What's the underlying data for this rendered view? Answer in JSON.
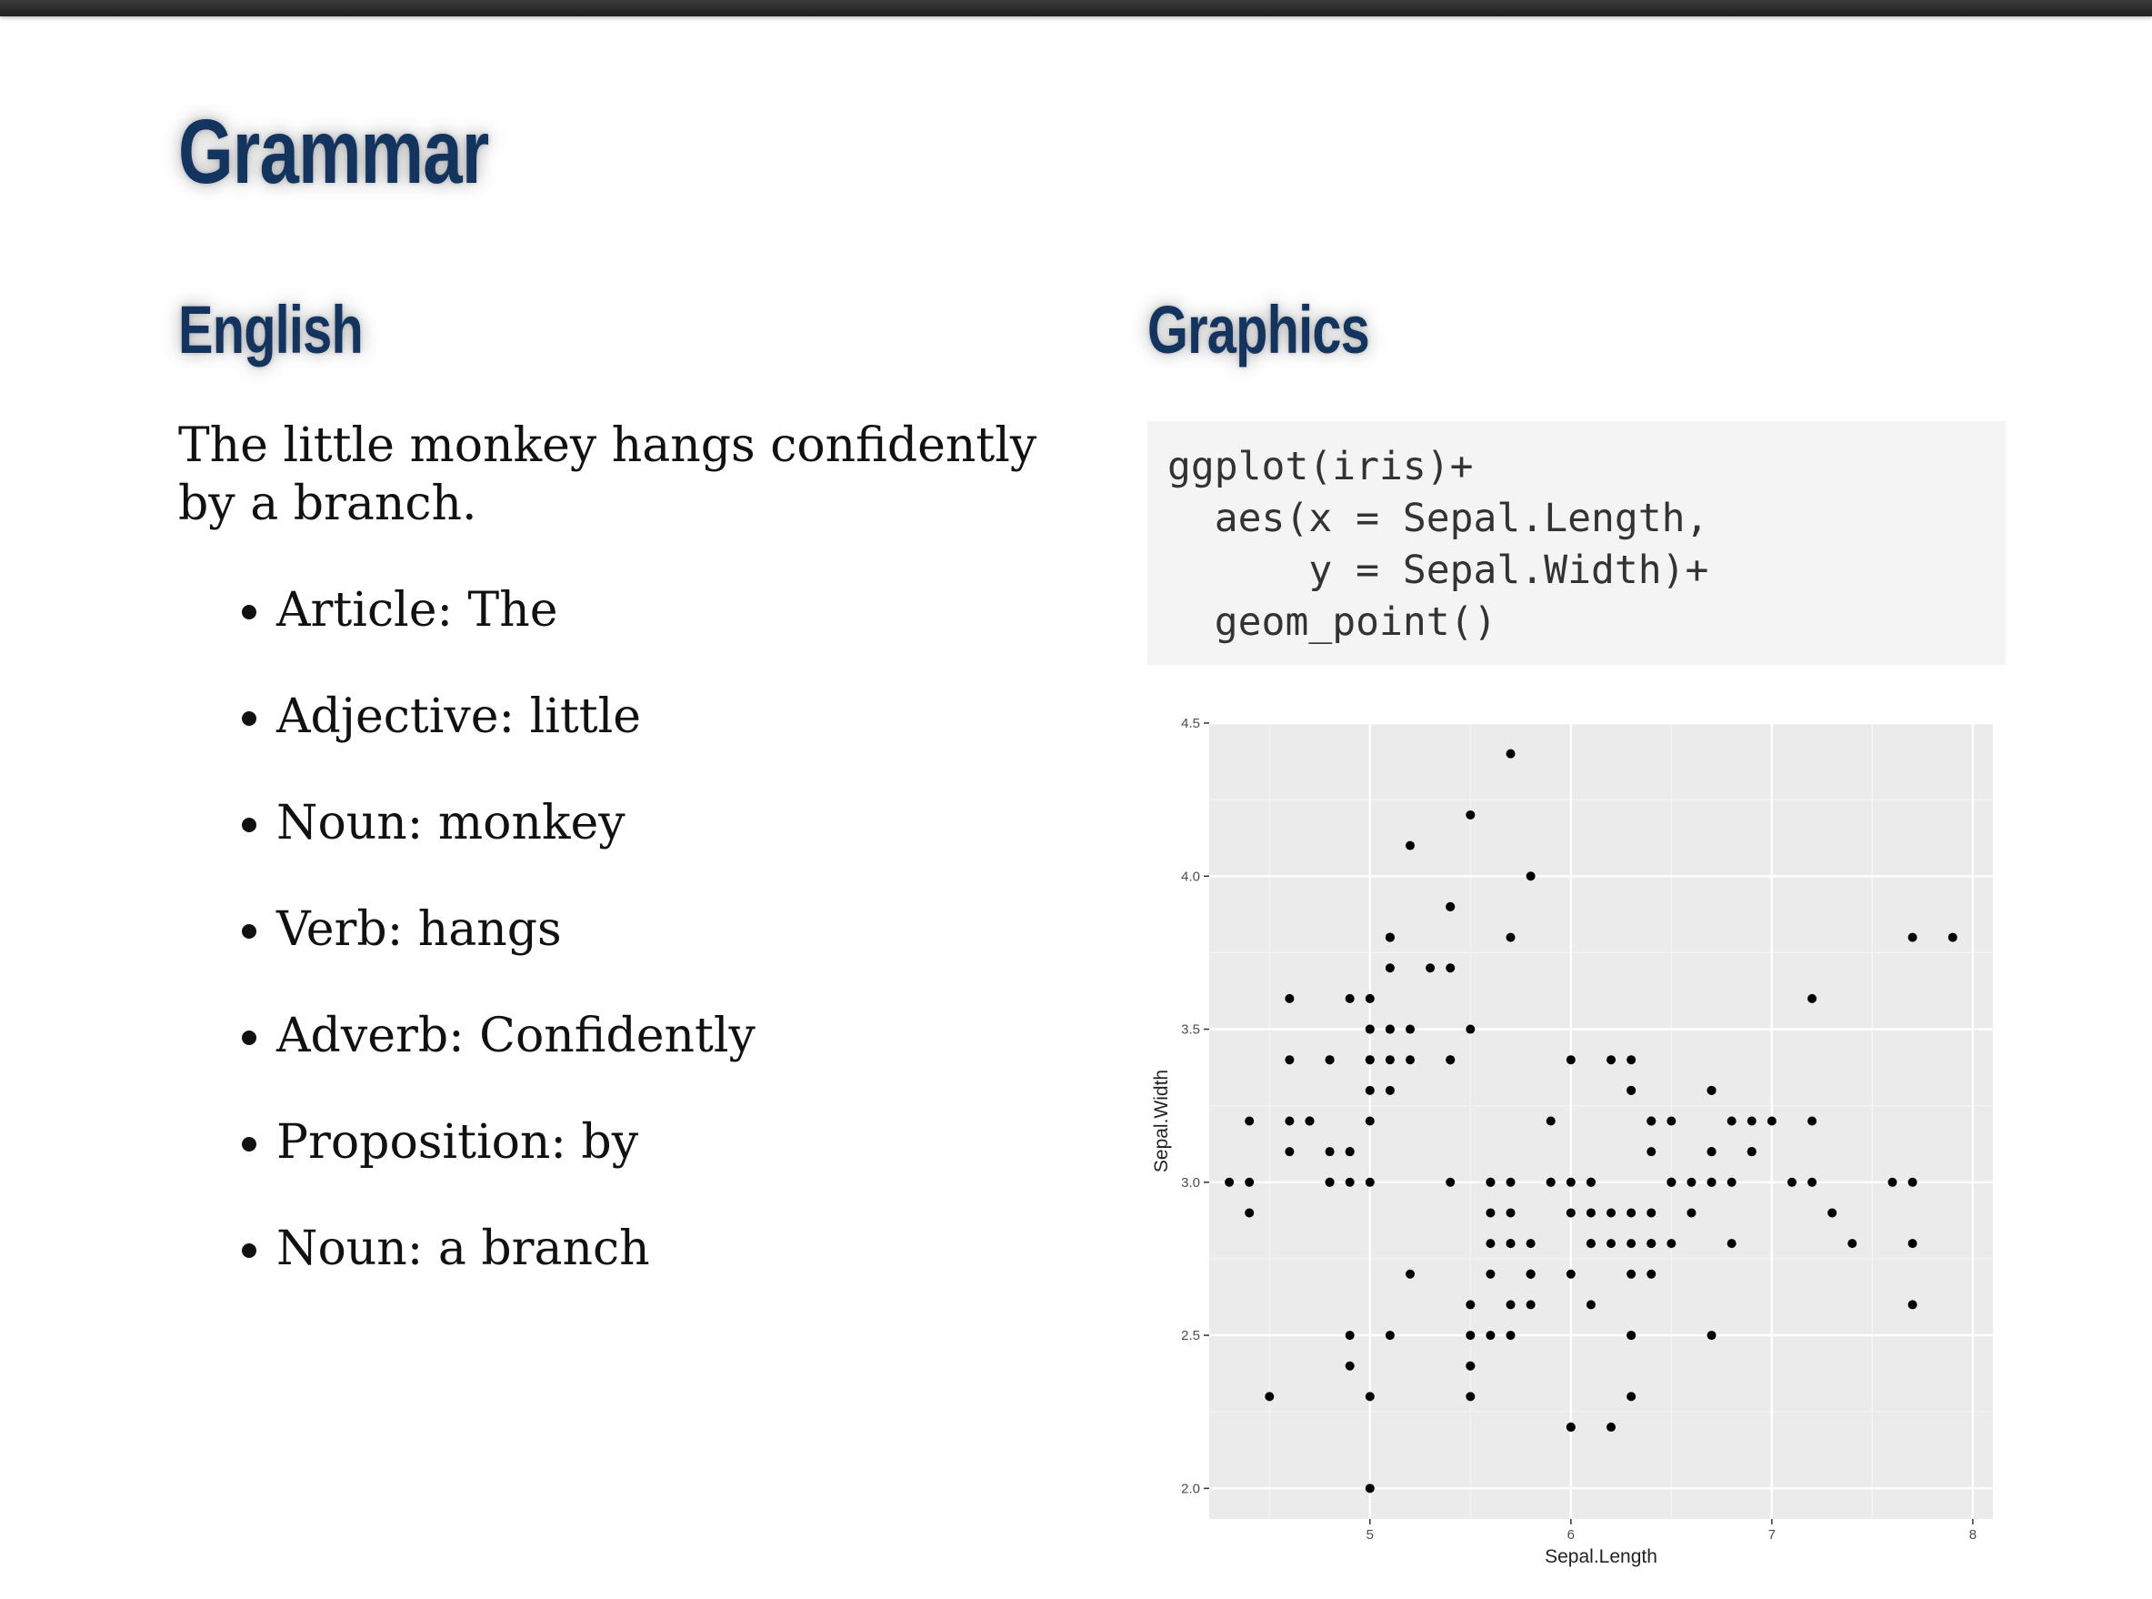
{
  "slide": {
    "title": "Grammar",
    "left": {
      "heading": "English",
      "sentence": "The little monkey hangs confidently by a branch.",
      "parts": [
        "Article: The",
        "Adjective: little",
        "Noun: monkey",
        "Verb: hangs",
        "Adverb: Confidently",
        "Proposition: by",
        "Noun: a branch"
      ]
    },
    "right": {
      "heading": "Graphics",
      "code": "ggplot(iris)+\n  aes(x = Sepal.Length,\n      y = Sepal.Width)+\n  geom_point()"
    }
  },
  "chart_data": {
    "type": "scatter",
    "xlabel": "Sepal.Length",
    "ylabel": "Sepal.Width",
    "xlim": [
      4.2,
      8.1
    ],
    "ylim": [
      1.9,
      4.5
    ],
    "x_ticks": [
      "5",
      "6",
      "7",
      "8"
    ],
    "y_ticks": [
      "2.0",
      "2.5",
      "3.0",
      "3.5",
      "4.0",
      "4.5"
    ],
    "grid": true,
    "background": "#ebebeb",
    "point_color": "#000000",
    "points": [
      [
        5.1,
        3.5
      ],
      [
        4.9,
        3.0
      ],
      [
        4.7,
        3.2
      ],
      [
        4.6,
        3.1
      ],
      [
        5.0,
        3.6
      ],
      [
        5.4,
        3.9
      ],
      [
        4.6,
        3.4
      ],
      [
        5.0,
        3.4
      ],
      [
        4.4,
        2.9
      ],
      [
        4.9,
        3.1
      ],
      [
        5.4,
        3.7
      ],
      [
        4.8,
        3.4
      ],
      [
        4.8,
        3.0
      ],
      [
        4.3,
        3.0
      ],
      [
        5.8,
        4.0
      ],
      [
        5.7,
        4.4
      ],
      [
        5.4,
        3.9
      ],
      [
        5.1,
        3.5
      ],
      [
        5.7,
        3.8
      ],
      [
        5.1,
        3.8
      ],
      [
        5.4,
        3.4
      ],
      [
        5.1,
        3.7
      ],
      [
        4.6,
        3.6
      ],
      [
        5.1,
        3.3
      ],
      [
        4.8,
        3.4
      ],
      [
        5.0,
        3.0
      ],
      [
        5.0,
        3.4
      ],
      [
        5.2,
        3.5
      ],
      [
        5.2,
        3.4
      ],
      [
        4.7,
        3.2
      ],
      [
        4.8,
        3.1
      ],
      [
        5.4,
        3.4
      ],
      [
        5.2,
        4.1
      ],
      [
        5.5,
        4.2
      ],
      [
        4.9,
        3.1
      ],
      [
        5.0,
        3.2
      ],
      [
        5.5,
        3.5
      ],
      [
        4.9,
        3.6
      ],
      [
        4.4,
        3.0
      ],
      [
        5.1,
        3.4
      ],
      [
        5.0,
        3.5
      ],
      [
        4.5,
        2.3
      ],
      [
        4.4,
        3.2
      ],
      [
        5.0,
        3.5
      ],
      [
        5.1,
        3.8
      ],
      [
        4.8,
        3.0
      ],
      [
        5.1,
        3.8
      ],
      [
        4.6,
        3.2
      ],
      [
        5.3,
        3.7
      ],
      [
        5.0,
        3.3
      ],
      [
        7.0,
        3.2
      ],
      [
        6.4,
        3.2
      ],
      [
        6.9,
        3.1
      ],
      [
        5.5,
        2.3
      ],
      [
        6.5,
        2.8
      ],
      [
        5.7,
        2.8
      ],
      [
        6.3,
        3.3
      ],
      [
        4.9,
        2.4
      ],
      [
        6.6,
        2.9
      ],
      [
        5.2,
        2.7
      ],
      [
        5.0,
        2.0
      ],
      [
        5.9,
        3.0
      ],
      [
        6.0,
        2.2
      ],
      [
        6.1,
        2.9
      ],
      [
        5.6,
        2.9
      ],
      [
        6.7,
        3.1
      ],
      [
        5.6,
        3.0
      ],
      [
        5.8,
        2.7
      ],
      [
        6.2,
        2.2
      ],
      [
        5.6,
        2.5
      ],
      [
        5.9,
        3.2
      ],
      [
        6.1,
        2.8
      ],
      [
        6.3,
        2.5
      ],
      [
        6.1,
        2.8
      ],
      [
        6.4,
        2.9
      ],
      [
        6.6,
        3.0
      ],
      [
        6.8,
        2.8
      ],
      [
        6.7,
        3.0
      ],
      [
        6.0,
        2.9
      ],
      [
        5.7,
        2.6
      ],
      [
        5.5,
        2.4
      ],
      [
        5.5,
        2.4
      ],
      [
        5.8,
        2.7
      ],
      [
        6.0,
        2.7
      ],
      [
        5.4,
        3.0
      ],
      [
        6.0,
        3.4
      ],
      [
        6.7,
        3.1
      ],
      [
        6.3,
        2.3
      ],
      [
        5.6,
        3.0
      ],
      [
        5.5,
        2.5
      ],
      [
        5.5,
        2.6
      ],
      [
        6.1,
        3.0
      ],
      [
        5.8,
        2.6
      ],
      [
        5.0,
        2.3
      ],
      [
        5.6,
        2.7
      ],
      [
        5.7,
        3.0
      ],
      [
        5.7,
        2.9
      ],
      [
        6.2,
        2.9
      ],
      [
        5.1,
        2.5
      ],
      [
        5.7,
        2.8
      ],
      [
        6.3,
        3.3
      ],
      [
        5.8,
        2.7
      ],
      [
        7.1,
        3.0
      ],
      [
        6.3,
        2.9
      ],
      [
        6.5,
        3.0
      ],
      [
        7.6,
        3.0
      ],
      [
        4.9,
        2.5
      ],
      [
        7.3,
        2.9
      ],
      [
        6.7,
        2.5
      ],
      [
        7.2,
        3.6
      ],
      [
        6.5,
        3.2
      ],
      [
        6.4,
        2.7
      ],
      [
        6.8,
        3.0
      ],
      [
        5.7,
        2.5
      ],
      [
        5.8,
        2.8
      ],
      [
        6.4,
        3.2
      ],
      [
        6.5,
        3.0
      ],
      [
        7.7,
        3.8
      ],
      [
        7.7,
        2.6
      ],
      [
        6.0,
        2.2
      ],
      [
        6.9,
        3.2
      ],
      [
        5.6,
        2.8
      ],
      [
        7.7,
        2.8
      ],
      [
        6.3,
        2.7
      ],
      [
        6.7,
        3.3
      ],
      [
        7.2,
        3.2
      ],
      [
        6.2,
        2.8
      ],
      [
        6.1,
        3.0
      ],
      [
        6.4,
        2.8
      ],
      [
        7.2,
        3.0
      ],
      [
        7.4,
        2.8
      ],
      [
        7.9,
        3.8
      ],
      [
        6.4,
        2.8
      ],
      [
        6.3,
        2.8
      ],
      [
        6.1,
        2.6
      ],
      [
        7.7,
        3.0
      ],
      [
        6.3,
        3.4
      ],
      [
        6.4,
        3.1
      ],
      [
        6.0,
        3.0
      ],
      [
        6.9,
        3.1
      ],
      [
        6.7,
        3.1
      ],
      [
        6.9,
        3.1
      ],
      [
        5.8,
        2.7
      ],
      [
        6.8,
        3.2
      ],
      [
        6.7,
        3.3
      ],
      [
        6.7,
        3.0
      ],
      [
        6.3,
        2.5
      ],
      [
        6.5,
        3.0
      ],
      [
        6.2,
        3.4
      ],
      [
        5.9,
        3.0
      ]
    ]
  }
}
